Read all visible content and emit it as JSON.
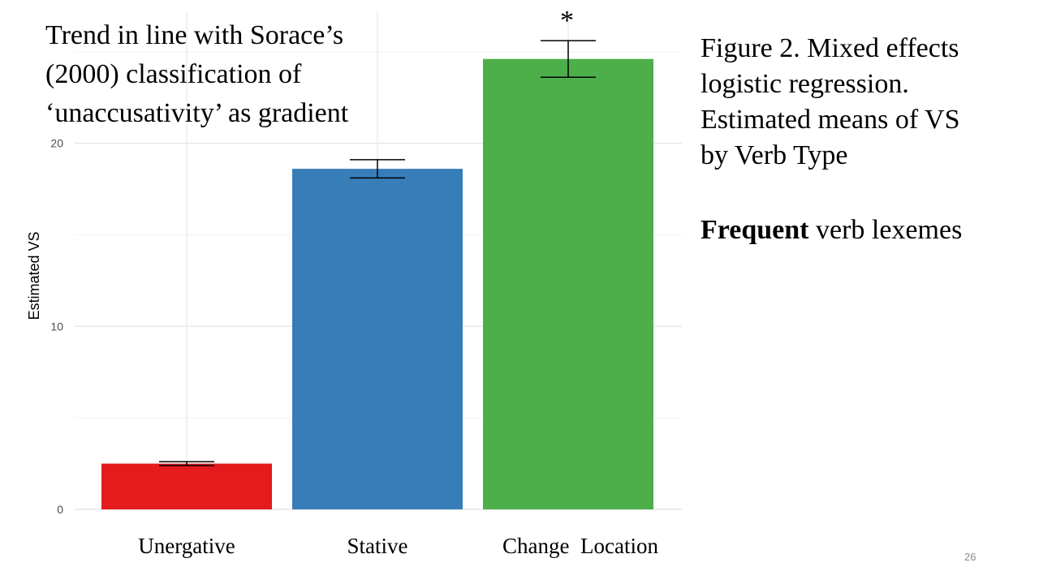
{
  "note": {
    "lines": [
      "Trend in line with Sorace’s",
      "(2000)  classification  of",
      "‘unaccusativity’ as gradient"
    ]
  },
  "caption": {
    "lines": [
      "Figure 2. Mixed effects",
      "logistic regression.",
      "Estimated means of VS",
      "by Verb Type"
    ],
    "frequent_bold": "Frequent",
    "frequent_rest": " verb lexemes"
  },
  "slide_number": "26",
  "chart_data": {
    "type": "bar",
    "categories": [
      "Unergative",
      "Stative",
      "Change  Location"
    ],
    "values": [
      2.5,
      18.6,
      24.6
    ],
    "error_low": [
      2.4,
      18.1,
      23.6
    ],
    "error_high": [
      2.6,
      19.1,
      25.6
    ],
    "colors": [
      "#e41a1c",
      "#377eb8",
      "#4daf4a"
    ],
    "annotations": [
      {
        "category": "Change  Location",
        "text": "*"
      }
    ],
    "ylabel": "Estimated VS",
    "xlabel": "",
    "title": "",
    "ylim": [
      0,
      27.2
    ],
    "yticks": [
      0,
      10,
      20
    ],
    "grid": true,
    "legend": "none"
  }
}
